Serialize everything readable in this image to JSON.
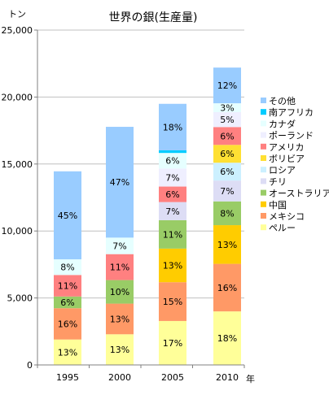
{
  "chart_data": {
    "type": "bar",
    "stacked": true,
    "title": "世界の銀(生産量)",
    "ylabel": "トン",
    "xlabel": "年",
    "categories": [
      "1995",
      "2000",
      "2005",
      "2010"
    ],
    "totals": [
      14600,
      17600,
      19300,
      22200
    ],
    "ylim": [
      0,
      25000
    ],
    "yticks": [
      "0",
      "5,000",
      "10,000",
      "15,000",
      "20,000",
      "25,000"
    ],
    "grid": true,
    "legend_position": "right",
    "series": [
      {
        "name": "ペルー",
        "color": "#ffff99",
        "percents": [
          13,
          13,
          17,
          18
        ]
      },
      {
        "name": "メキシコ",
        "color": "#ff9966",
        "percents": [
          16,
          13,
          15,
          16
        ]
      },
      {
        "name": "中国",
        "color": "#ffcc00",
        "percents": [
          0,
          0,
          13,
          13
        ]
      },
      {
        "name": "オーストラリア",
        "color": "#99cc66",
        "percents": [
          6,
          10,
          11,
          8
        ]
      },
      {
        "name": "チリ",
        "color": "#ddddf5",
        "percents": [
          0,
          0,
          7,
          7
        ]
      },
      {
        "name": "ロシア",
        "color": "#ccf0ff",
        "percents": [
          0,
          0,
          0,
          6
        ]
      },
      {
        "name": "ボリビア",
        "color": "#ffe033",
        "percents": [
          0,
          0,
          0,
          6
        ]
      },
      {
        "name": "アメリカ",
        "color": "#ff8080",
        "percents": [
          11,
          11,
          6,
          6
        ]
      },
      {
        "name": "ポーランド",
        "color": "#efefff",
        "percents": [
          0,
          0,
          7,
          5
        ]
      },
      {
        "name": "カナダ",
        "color": "#e6ffff",
        "percents": [
          8,
          7,
          6,
          3
        ]
      },
      {
        "name": "南アフリカ",
        "color": "#00ccff",
        "percents": [
          0,
          0,
          1,
          0
        ]
      },
      {
        "name": "その他",
        "color": "#99ccff",
        "percents": [
          45,
          47,
          18,
          12
        ]
      }
    ],
    "legend_order": [
      "その他",
      "南アフリカ",
      "カナダ",
      "ポーランド",
      "アメリカ",
      "ボリビア",
      "ロシア",
      "チリ",
      "オーストラリア",
      "中国",
      "メキシコ",
      "ペルー"
    ]
  }
}
